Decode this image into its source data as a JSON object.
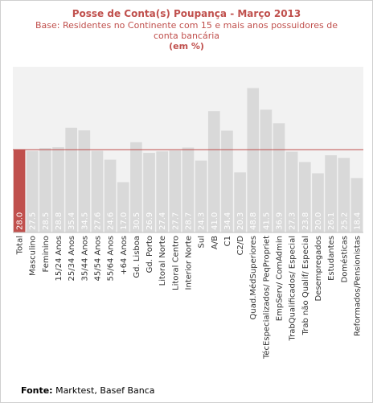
{
  "chart_data": {
    "type": "bar",
    "title": "Posse de Conta(s) Poupança - Março 2013",
    "subtitle": "Base: Residentes no Continente com 15 e mais anos possuidores de conta bancária",
    "unit": "(em %)",
    "categories": [
      "Total",
      "Masculino",
      "Feminino",
      "15/24 Anos",
      "25/34 Anos",
      "35/44 Anos",
      "45/54 Anos",
      "55/64 Anos",
      "+64 Anos",
      "Gd. Lisboa",
      "Gd. Porto",
      "Litoral Norte",
      "Litoral Centro",
      "Interior Norte",
      "Sul",
      "A/B",
      "C1",
      "C2/D",
      "Quad.MédSuperiores",
      "TécEspecializados/ PeqPropriet",
      "EmpServ/ ComAdmin",
      "TrabQualificados/ Especial",
      "Trab não Qualif/ Especial",
      "Desempregados",
      "Estudantes",
      "Domésticas",
      "Reformados/Pensionistas"
    ],
    "values": [
      28.0,
      27.5,
      28.5,
      28.8,
      35.4,
      34.5,
      27.6,
      24.6,
      17.0,
      30.5,
      26.9,
      27.4,
      27.7,
      28.7,
      24.3,
      41.0,
      34.4,
      20.3,
      48.8,
      41.5,
      36.9,
      27.3,
      23.8,
      20.0,
      26.1,
      25.2,
      18.4
    ],
    "value_labels": [
      "28.0",
      "27.5",
      "28.5",
      "28.8",
      "35.4",
      "34.5",
      "27.6",
      "24.6",
      "17.0",
      "30.5",
      "26.9",
      "27.4",
      "27.7",
      "28.7",
      "24.3",
      "41.0",
      "34.4",
      "20.3",
      "48.8",
      "41.5",
      "36.9",
      "27.3",
      "23.8",
      "20.0",
      "26.1",
      "25.2",
      "18.4"
    ],
    "reference_line": 28.0,
    "highlight_index": 0,
    "ylim": [
      0,
      56
    ],
    "grid": false,
    "colors": {
      "bar": "#d9d9d9",
      "highlight": "#c0504d",
      "reference_line": "#c0504d",
      "plot_background": "#f2f2f2",
      "label_text": "#ffffff",
      "axis_text": "#333333"
    }
  },
  "source": {
    "label": "Fonte:",
    "text": "Marktest, Basef Banca"
  }
}
